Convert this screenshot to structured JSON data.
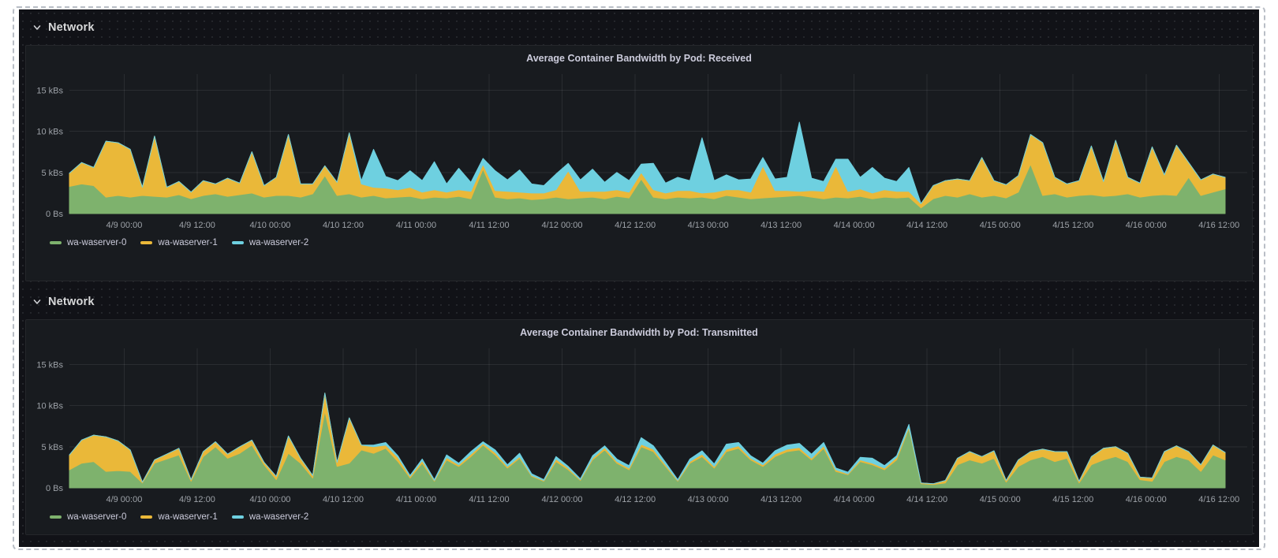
{
  "sections": [
    {
      "title": "Network",
      "icon": "chevron-down-icon"
    },
    {
      "title": "Network",
      "icon": "chevron-down-icon"
    }
  ],
  "chart_data": [
    {
      "type": "area",
      "stacked": true,
      "title": "Average Container Bandwidth by Pod: Received",
      "unit": "kBs",
      "ylim": [
        0,
        15.6
      ],
      "grid": true,
      "legend_position": "bottom-left",
      "y_ticks": [
        {
          "value": 0,
          "label": "0 Bs"
        },
        {
          "value": 5,
          "label": "5 kBs"
        },
        {
          "value": 10,
          "label": "10 kBs"
        },
        {
          "value": 15,
          "label": "15 kBs"
        }
      ],
      "x_start": "4/8 15:00",
      "x_end": "4/16 13:00",
      "span_hours": 190,
      "step_hours": 2,
      "x_ticks": [
        {
          "hours": 9,
          "label": "4/9 00:00"
        },
        {
          "hours": 21,
          "label": "4/9 12:00"
        },
        {
          "hours": 33,
          "label": "4/10 00:00"
        },
        {
          "hours": 45,
          "label": "4/10 12:00"
        },
        {
          "hours": 57,
          "label": "4/11 00:00"
        },
        {
          "hours": 69,
          "label": "4/11 12:00"
        },
        {
          "hours": 81,
          "label": "4/12 00:00"
        },
        {
          "hours": 93,
          "label": "4/12 12:00"
        },
        {
          "hours": 105,
          "label": "4/13 00:00"
        },
        {
          "hours": 117,
          "label": "4/13 12:00"
        },
        {
          "hours": 129,
          "label": "4/14 00:00"
        },
        {
          "hours": 141,
          "label": "4/14 12:00"
        },
        {
          "hours": 153,
          "label": "4/15 00:00"
        },
        {
          "hours": 165,
          "label": "4/15 12:00"
        },
        {
          "hours": 177,
          "label": "4/16 00:00"
        },
        {
          "hours": 189,
          "label": "4/16 12:00"
        }
      ],
      "series": [
        {
          "name": "wa-waserver-0",
          "color": "#7EB26D",
          "values": [
            3.3,
            3.6,
            3.4,
            2.0,
            2.2,
            2.0,
            2.2,
            2.1,
            2.0,
            2.3,
            1.8,
            2.2,
            2.4,
            2.1,
            2.3,
            2.5,
            2.0,
            2.2,
            2.2,
            2.0,
            2.4,
            4.6,
            2.2,
            2.4,
            2.0,
            2.2,
            1.9,
            2.0,
            2.1,
            1.8,
            2.0,
            1.9,
            2.1,
            1.8,
            5.4,
            2.0,
            1.8,
            1.9,
            1.7,
            1.8,
            2.0,
            1.8,
            1.9,
            2.0,
            1.8,
            2.1,
            1.9,
            4.2,
            2.0,
            1.8,
            2.0,
            1.9,
            2.0,
            1.8,
            2.2,
            2.0,
            1.8,
            1.9,
            2.0,
            2.1,
            2.2,
            2.0,
            1.8,
            2.0,
            1.9,
            2.1,
            1.8,
            2.0,
            1.9,
            2.0,
            0.7,
            1.8,
            2.2,
            2.0,
            2.4,
            2.0,
            2.2,
            1.9,
            2.6,
            6.0,
            2.2,
            2.4,
            2.0,
            2.2,
            2.3,
            2.1,
            2.2,
            2.4,
            2.0,
            2.2,
            2.3,
            2.2,
            4.4,
            2.2,
            2.6,
            3.0
          ]
        },
        {
          "name": "wa-waserver-1",
          "color": "#EAB839",
          "values": [
            1.6,
            2.6,
            2.2,
            6.8,
            6.4,
            5.8,
            1.0,
            7.3,
            1.2,
            1.6,
            0.8,
            1.8,
            1.2,
            2.2,
            1.4,
            5.0,
            1.4,
            2.2,
            7.4,
            1.6,
            1.2,
            1.2,
            1.6,
            7.4,
            1.6,
            1.0,
            1.2,
            0.9,
            1.1,
            0.8,
            0.9,
            0.7,
            0.8,
            0.9,
            0.6,
            0.8,
            0.9,
            0.7,
            0.8,
            0.7,
            0.9,
            3.4,
            0.8,
            0.7,
            0.9,
            0.8,
            0.7,
            0.8,
            0.9,
            0.7,
            0.8,
            0.9,
            0.5,
            0.8,
            0.7,
            0.9,
            0.8,
            3.9,
            0.8,
            0.7,
            0.5,
            0.8,
            0.9,
            3.8,
            0.8,
            0.9,
            0.7,
            0.9,
            0.8,
            0.7,
            0.5,
            1.6,
            1.8,
            2.2,
            1.6,
            4.8,
            1.8,
            1.6,
            2.0,
            3.6,
            6.4,
            2.0,
            1.6,
            1.8,
            5.9,
            1.8,
            6.7,
            2.0,
            1.7,
            5.9,
            2.4,
            6.1,
            1.8,
            1.9,
            2.2,
            1.4
          ]
        },
        {
          "name": "wa-waserver-2",
          "color": "#6ED0E0",
          "values": [
            0,
            0,
            0,
            0,
            0,
            0,
            0,
            0,
            0,
            0,
            0,
            0,
            0,
            0,
            0,
            0,
            0,
            0,
            0,
            0,
            0,
            0,
            0,
            0,
            0.4,
            4.6,
            1.4,
            1.1,
            2.0,
            1.4,
            3.4,
            1.0,
            2.6,
            1.1,
            0.7,
            2.4,
            1.4,
            2.7,
            1.1,
            0.9,
            1.9,
            0.9,
            1.4,
            2.7,
            1.1,
            2.1,
            1.4,
            1.0,
            3.2,
            1.2,
            1.6,
            1.2,
            6.7,
            1.4,
            1.8,
            1.2,
            1.6,
            1.0,
            1.4,
            1.6,
            8.4,
            1.5,
            1.2,
            0.8,
            3.9,
            1.4,
            3.1,
            1.4,
            1.2,
            2.9,
            0,
            0,
            0,
            0,
            0,
            0,
            0,
            0,
            0,
            0,
            0,
            0,
            0,
            0,
            0,
            0,
            0,
            0,
            0,
            0,
            0,
            0,
            0,
            0,
            0,
            0
          ]
        }
      ]
    },
    {
      "type": "area",
      "stacked": true,
      "title": "Average Container Bandwidth by Pod: Transmitted",
      "unit": "kBs",
      "ylim": [
        0,
        15.6
      ],
      "grid": true,
      "legend_position": "bottom-left",
      "y_ticks": [
        {
          "value": 0,
          "label": "0 Bs"
        },
        {
          "value": 5,
          "label": "5 kBs"
        },
        {
          "value": 10,
          "label": "10 kBs"
        },
        {
          "value": 15,
          "label": "15 kBs"
        }
      ],
      "x_start": "4/8 15:00",
      "x_end": "4/16 13:00",
      "span_hours": 190,
      "step_hours": 2,
      "x_ticks": [
        {
          "hours": 9,
          "label": "4/9 00:00"
        },
        {
          "hours": 21,
          "label": "4/9 12:00"
        },
        {
          "hours": 33,
          "label": "4/10 00:00"
        },
        {
          "hours": 45,
          "label": "4/10 12:00"
        },
        {
          "hours": 57,
          "label": "4/11 00:00"
        },
        {
          "hours": 69,
          "label": "4/11 12:00"
        },
        {
          "hours": 81,
          "label": "4/12 00:00"
        },
        {
          "hours": 93,
          "label": "4/12 12:00"
        },
        {
          "hours": 105,
          "label": "4/13 00:00"
        },
        {
          "hours": 117,
          "label": "4/13 12:00"
        },
        {
          "hours": 129,
          "label": "4/14 00:00"
        },
        {
          "hours": 141,
          "label": "4/14 12:00"
        },
        {
          "hours": 153,
          "label": "4/15 00:00"
        },
        {
          "hours": 165,
          "label": "4/15 12:00"
        },
        {
          "hours": 177,
          "label": "4/16 00:00"
        },
        {
          "hours": 189,
          "label": "4/16 12:00"
        }
      ],
      "series": [
        {
          "name": "wa-waserver-0",
          "color": "#7EB26D",
          "values": [
            2.2,
            3.0,
            3.2,
            2.0,
            2.1,
            2.0,
            0.6,
            3.0,
            3.5,
            4.0,
            0.8,
            3.8,
            5.0,
            3.6,
            4.2,
            5.2,
            2.8,
            1.0,
            4.2,
            3.0,
            1.2,
            9.3,
            2.6,
            3.0,
            4.6,
            4.2,
            4.8,
            3.2,
            1.2,
            3.0,
            0.8,
            3.4,
            2.6,
            3.8,
            5.2,
            4.0,
            2.4,
            3.6,
            1.4,
            0.8,
            3.2,
            2.2,
            0.9,
            3.4,
            4.6,
            3.0,
            2.2,
            5.0,
            4.4,
            2.6,
            0.8,
            3.0,
            3.8,
            2.4,
            4.4,
            4.8,
            3.4,
            2.6,
            3.8,
            4.4,
            4.6,
            3.4,
            4.8,
            2.0,
            1.6,
            3.2,
            2.8,
            2.2,
            3.4,
            7.2,
            0.5,
            0.4,
            0.6,
            2.8,
            3.4,
            3.0,
            3.6,
            0.7,
            2.6,
            3.4,
            3.8,
            3.2,
            3.6,
            0.6,
            2.8,
            3.4,
            3.8,
            3.2,
            1.0,
            0.8,
            3.2,
            3.8,
            3.4,
            2.0,
            4.0,
            3.4
          ]
        },
        {
          "name": "wa-waserver-1",
          "color": "#EAB839",
          "values": [
            1.8,
            2.8,
            3.2,
            4.2,
            3.6,
            2.6,
            0.1,
            0.4,
            0.6,
            0.8,
            0.2,
            0.6,
            0.6,
            0.5,
            0.8,
            0.6,
            0.3,
            0.4,
            2.1,
            0.6,
            0.3,
            2.2,
            0.5,
            5.5,
            0.6,
            0.8,
            0.4,
            0.5,
            0.2,
            0.3,
            0.1,
            0.3,
            0.2,
            0.3,
            0.2,
            0.3,
            0.2,
            0.2,
            0.1,
            0.1,
            0.3,
            0.2,
            0.1,
            0.2,
            0.3,
            0.2,
            0.2,
            0.3,
            0.3,
            0.2,
            0.1,
            0.2,
            0.3,
            0.2,
            0.3,
            0.3,
            0.2,
            0.2,
            0.3,
            0.3,
            0.3,
            0.2,
            0.3,
            0.2,
            0.1,
            0.2,
            0.2,
            0.2,
            0.3,
            0.2,
            0.1,
            0.1,
            0.3,
            0.8,
            1.0,
            0.8,
            0.9,
            0.2,
            0.8,
            1.0,
            0.9,
            1.2,
            0.8,
            0.2,
            1.0,
            1.4,
            1.2,
            1.0,
            0.3,
            0.4,
            1.2,
            1.3,
            1.0,
            0.8,
            1.2,
            0.9
          ]
        },
        {
          "name": "wa-waserver-2",
          "color": "#6ED0E0",
          "values": [
            0,
            0,
            0,
            0,
            0,
            0,
            0,
            0,
            0,
            0,
            0,
            0,
            0,
            0,
            0,
            0,
            0,
            0,
            0,
            0,
            0,
            0,
            0,
            0,
            0,
            0.2,
            0.3,
            0.2,
            0.1,
            0.2,
            0.1,
            0.3,
            0.2,
            0.3,
            0.2,
            0.3,
            0.2,
            0.4,
            0.2,
            0.1,
            0.3,
            0.2,
            0.1,
            0.3,
            0.2,
            0.3,
            0.3,
            0.8,
            0.4,
            0.3,
            0.1,
            0.3,
            0.4,
            0.3,
            0.6,
            0.4,
            0.3,
            0.2,
            0.4,
            0.5,
            0.5,
            0.5,
            0.4,
            0.2,
            0.2,
            0.3,
            0.6,
            0.3,
            0.2,
            0.3,
            0,
            0,
            0,
            0,
            0,
            0,
            0,
            0,
            0,
            0,
            0,
            0,
            0,
            0,
            0,
            0,
            0,
            0,
            0,
            0,
            0,
            0,
            0,
            0,
            0,
            0
          ]
        }
      ]
    }
  ]
}
